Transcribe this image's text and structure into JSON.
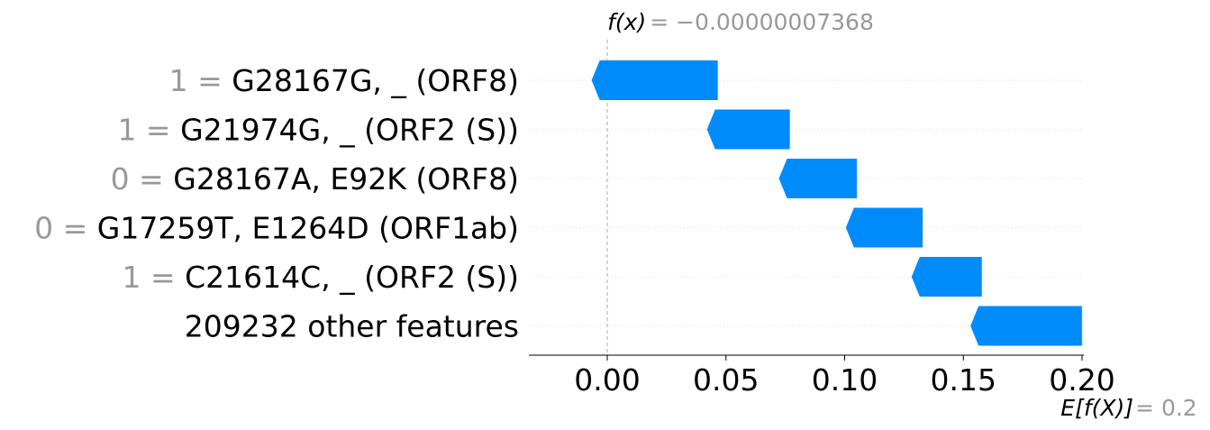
{
  "chart_data": {
    "type": "waterfall",
    "title": "",
    "xlabel": "",
    "ylabel": "",
    "xlim": [
      -0.034,
      0.2
    ],
    "xticks": [
      "0.00",
      "0.05",
      "0.10",
      "0.15",
      "0.20"
    ],
    "xtick_values": [
      0.0,
      0.05,
      0.1,
      0.15,
      0.2
    ],
    "fx": {
      "label": "f(x)",
      "value_text": "= −0.00000007368",
      "value": -7.368e-08
    },
    "base": {
      "label": "E[f(X)]",
      "value_text": "= 0.2",
      "value": 0.2
    },
    "bar_color": "#008bfb",
    "features": [
      {
        "value": "1 =",
        "name": "G28167G, _ (ORF8)",
        "from": 0.0466,
        "to": -0.0066,
        "direction": "negative"
      },
      {
        "value": "1 =",
        "name": "G21974G, _ (ORF2 (S))",
        "from": 0.0769,
        "to": 0.042,
        "direction": "negative"
      },
      {
        "value": "0 =",
        "name": "G28167A, E92K (ORF8)",
        "from": 0.1052,
        "to": 0.0723,
        "direction": "negative"
      },
      {
        "value": "0 =",
        "name": "G17259T, E1264D (ORF1ab)",
        "from": 0.1329,
        "to": 0.1005,
        "direction": "negative"
      },
      {
        "value": "1 =",
        "name": "C21614C, _ (ORF2 (S))",
        "from": 0.1578,
        "to": 0.1282,
        "direction": "negative"
      },
      {
        "value": "",
        "name": "209232 other features",
        "from": 0.2,
        "to": 0.153,
        "direction": "negative"
      }
    ]
  }
}
